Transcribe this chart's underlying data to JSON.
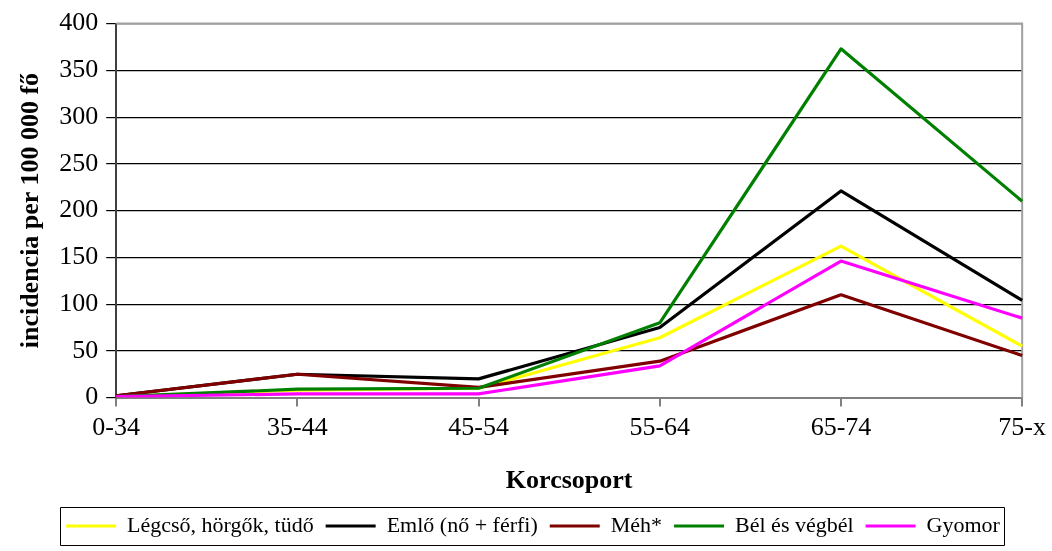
{
  "chart_data": {
    "type": "line",
    "xlabel": "Korcsoport",
    "ylabel": "incidencia per 100 000 fő",
    "categories": [
      "0-34",
      "35-44",
      "45-54",
      "55-64",
      "65-74",
      "75-x"
    ],
    "series": [
      {
        "name": "Légcső, hörgők, tüdő",
        "color": "#ffff00",
        "values": [
          1,
          8,
          10,
          64,
          162,
          55
        ]
      },
      {
        "name": "Emlő (nő + férfi)",
        "color": "#000000",
        "values": [
          2,
          25,
          20,
          75,
          221,
          104
        ]
      },
      {
        "name": "Méh*",
        "color": "#800000",
        "values": [
          2,
          25,
          11,
          39,
          110,
          45
        ]
      },
      {
        "name": "Bél és végbél",
        "color": "#008000",
        "values": [
          1,
          9,
          10,
          80,
          373,
          210
        ]
      },
      {
        "name": "Gyomor",
        "color": "#ff00ff",
        "values": [
          1,
          4,
          4,
          34,
          146,
          85
        ]
      }
    ],
    "ylim": [
      0,
      400
    ],
    "yticks": [
      0,
      50,
      100,
      150,
      200,
      250,
      300,
      350,
      400
    ],
    "grid": "y",
    "legend": "bottom",
    "marker": "none",
    "line_style": "solid"
  }
}
